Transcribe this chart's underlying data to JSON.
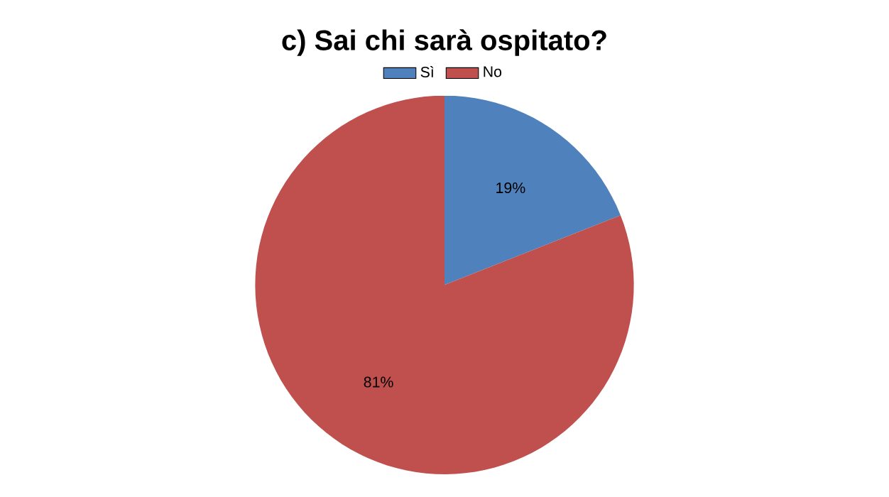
{
  "chart_data": {
    "type": "pie",
    "title": "c) Sai chi sarà ospitato?",
    "categories": [
      "Sì",
      "No"
    ],
    "values": [
      19,
      81
    ],
    "colors": [
      "#4f81bd",
      "#c0504d"
    ],
    "value_labels": [
      "19%",
      "81%"
    ],
    "data_labels": true,
    "legend": "top"
  }
}
